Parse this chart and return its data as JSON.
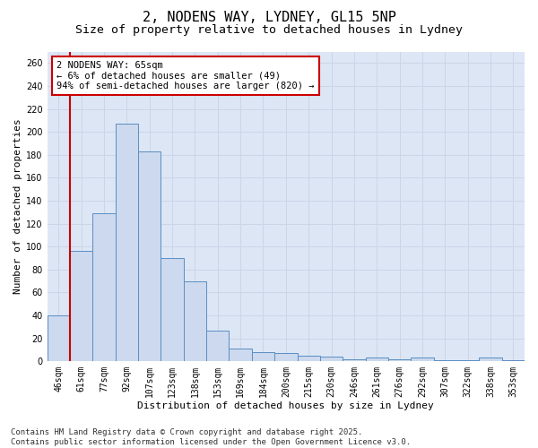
{
  "title_line1": "2, NODENS WAY, LYDNEY, GL15 5NP",
  "title_line2": "Size of property relative to detached houses in Lydney",
  "xlabel": "Distribution of detached houses by size in Lydney",
  "ylabel": "Number of detached properties",
  "categories": [
    "46sqm",
    "61sqm",
    "77sqm",
    "92sqm",
    "107sqm",
    "123sqm",
    "138sqm",
    "153sqm",
    "169sqm",
    "184sqm",
    "200sqm",
    "215sqm",
    "230sqm",
    "246sqm",
    "261sqm",
    "276sqm",
    "292sqm",
    "307sqm",
    "322sqm",
    "338sqm",
    "353sqm"
  ],
  "values": [
    40,
    96,
    129,
    207,
    183,
    90,
    70,
    27,
    11,
    8,
    7,
    5,
    4,
    2,
    3,
    2,
    3,
    1,
    1,
    3,
    1
  ],
  "bar_color": "#ccd9ee",
  "bar_edge_color": "#5b8ec4",
  "vline_x": 0.5,
  "vline_color": "#cc0000",
  "annotation_text": "2 NODENS WAY: 65sqm\n← 6% of detached houses are smaller (49)\n94% of semi-detached houses are larger (820) →",
  "annotation_box_color": "#ffffff",
  "annotation_box_edge_color": "#cc0000",
  "ylim": [
    0,
    270
  ],
  "yticks": [
    0,
    20,
    40,
    60,
    80,
    100,
    120,
    140,
    160,
    180,
    200,
    220,
    240,
    260
  ],
  "grid_color": "#ccd5e8",
  "background_color": "#dce6f5",
  "footer_text": "Contains HM Land Registry data © Crown copyright and database right 2025.\nContains public sector information licensed under the Open Government Licence v3.0.",
  "title_fontsize": 11,
  "subtitle_fontsize": 9.5,
  "axis_label_fontsize": 8,
  "tick_fontsize": 7,
  "annotation_fontsize": 7.5,
  "footer_fontsize": 6.5
}
